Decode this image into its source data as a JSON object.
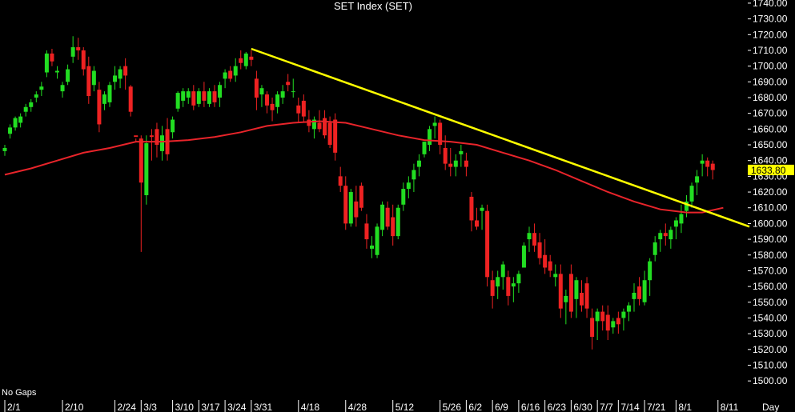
{
  "chart_data": {
    "type": "candlestick",
    "title": "SET Index (SET)",
    "note": "No Gaps",
    "period_label": "Day",
    "last_value": "1633.80",
    "ylim": [
      1495,
      1742
    ],
    "y_ticks": [
      1500,
      1510,
      1520,
      1530,
      1540,
      1550,
      1560,
      1570,
      1580,
      1590,
      1600,
      1610,
      1620,
      1630,
      1640,
      1650,
      1660,
      1670,
      1680,
      1690,
      1700,
      1710,
      1720,
      1730,
      1740
    ],
    "y_tick_labels": [
      "1500.00",
      "1510.00",
      "1520.00",
      "1530.00",
      "1540.00",
      "1550.00",
      "1560.00",
      "1570.00",
      "1580.00",
      "1590.00",
      "1600.00",
      "1610.00",
      "1620.00",
      "1630.00",
      "1640.00",
      "1650.00",
      "1660.00",
      "1670.00",
      "1680.00",
      "1690.00",
      "1700.00",
      "1710.00",
      "1720.00",
      "1730.00",
      "1740.00"
    ],
    "x_tick_labels": [
      {
        "label": "2/1",
        "index": 0
      },
      {
        "label": "2/10",
        "index": 11
      },
      {
        "label": "2/24",
        "index": 21
      },
      {
        "label": "3/3",
        "index": 26
      },
      {
        "label": "3/10",
        "index": 32
      },
      {
        "label": "3/17",
        "index": 37
      },
      {
        "label": "3/24",
        "index": 42
      },
      {
        "label": "3/31",
        "index": 47
      },
      {
        "label": "4/18",
        "index": 56
      },
      {
        "label": "4/28",
        "index": 65
      },
      {
        "label": "5/12",
        "index": 74
      },
      {
        "label": "5/26",
        "index": 83
      },
      {
        "label": "6/2",
        "index": 88
      },
      {
        "label": "6/9",
        "index": 93
      },
      {
        "label": "6/16",
        "index": 98
      },
      {
        "label": "6/23",
        "index": 103
      },
      {
        "label": "6/30",
        "index": 108
      },
      {
        "label": "7/7",
        "index": 113
      },
      {
        "label": "7/14",
        "index": 117
      },
      {
        "label": "7/21",
        "index": 122
      },
      {
        "label": "8/1",
        "index": 128
      },
      {
        "label": "8/11",
        "index": 136
      }
    ],
    "candles": [
      [
        1646,
        1650,
        1643,
        1648
      ],
      [
        1657,
        1663,
        1654,
        1661
      ],
      [
        1661,
        1668,
        1659,
        1667
      ],
      [
        1664,
        1670,
        1661,
        1668
      ],
      [
        1671,
        1676,
        1668,
        1674
      ],
      [
        1674,
        1679,
        1671,
        1677
      ],
      [
        1680,
        1684,
        1677,
        1682
      ],
      [
        1685,
        1690,
        1681,
        1687
      ],
      [
        1696,
        1710,
        1693,
        1708
      ],
      [
        1708,
        1711,
        1700,
        1703
      ],
      [
        1696,
        1700,
        1692,
        1697
      ],
      [
        1684,
        1690,
        1680,
        1688
      ],
      [
        1690,
        1701,
        1688,
        1698
      ],
      [
        1706,
        1719,
        1702,
        1712
      ],
      [
        1712,
        1718,
        1704,
        1710
      ],
      [
        1710,
        1712,
        1694,
        1698
      ],
      [
        1700,
        1706,
        1676,
        1681
      ],
      [
        1688,
        1700,
        1684,
        1697
      ],
      [
        1685,
        1690,
        1658,
        1663
      ],
      [
        1676,
        1684,
        1672,
        1682
      ],
      [
        1677,
        1690,
        1674,
        1688
      ],
      [
        1690,
        1700,
        1685,
        1694
      ],
      [
        1692,
        1700,
        1686,
        1698
      ],
      [
        1700,
        1705,
        1685,
        1694
      ],
      [
        1687,
        1688,
        1668,
        1671
      ],
      [
        1656,
        1654,
        1652,
        1655
      ],
      [
        1654,
        1656,
        1582,
        1626
      ],
      [
        1618,
        1656,
        1612,
        1651
      ],
      [
        1656,
        1660,
        1640,
        1655
      ],
      [
        1660,
        1664,
        1642,
        1650
      ],
      [
        1646,
        1662,
        1640,
        1656
      ],
      [
        1660,
        1667,
        1640,
        1644
      ],
      [
        1658,
        1668,
        1654,
        1666
      ],
      [
        1673,
        1684,
        1671,
        1683
      ],
      [
        1678,
        1686,
        1674,
        1684
      ],
      [
        1680,
        1686,
        1676,
        1684
      ],
      [
        1684,
        1688,
        1672,
        1675
      ],
      [
        1676,
        1686,
        1674,
        1684
      ],
      [
        1684,
        1690,
        1674,
        1678
      ],
      [
        1676,
        1686,
        1674,
        1684
      ],
      [
        1684,
        1688,
        1674,
        1677
      ],
      [
        1680,
        1690,
        1674,
        1688
      ],
      [
        1692,
        1698,
        1686,
        1696
      ],
      [
        1697,
        1700,
        1690,
        1692
      ],
      [
        1694,
        1705,
        1690,
        1700
      ],
      [
        1705,
        1710,
        1698,
        1702
      ],
      [
        1700,
        1709,
        1698,
        1708
      ],
      [
        1706,
        1710,
        1700,
        1704
      ],
      [
        1692,
        1697,
        1672,
        1680
      ],
      [
        1682,
        1688,
        1674,
        1686
      ],
      [
        1682,
        1684,
        1670,
        1675
      ],
      [
        1676,
        1680,
        1665,
        1672
      ],
      [
        1674,
        1684,
        1670,
        1682
      ],
      [
        1680,
        1688,
        1676,
        1684
      ],
      [
        1690,
        1695,
        1684,
        1688
      ],
      [
        1684,
        1692,
        1680,
        1684
      ],
      [
        1675,
        1680,
        1664,
        1670
      ],
      [
        1678,
        1682,
        1664,
        1668
      ],
      [
        1666,
        1672,
        1658,
        1662
      ],
      [
        1660,
        1668,
        1654,
        1666
      ],
      [
        1664,
        1672,
        1658,
        1660
      ],
      [
        1667,
        1672,
        1654,
        1656
      ],
      [
        1664,
        1668,
        1648,
        1650
      ],
      [
        1666,
        1670,
        1640,
        1645
      ],
      [
        1630,
        1636,
        1620,
        1624
      ],
      [
        1624,
        1630,
        1596,
        1600
      ],
      [
        1600,
        1622,
        1598,
        1620
      ],
      [
        1614,
        1624,
        1598,
        1604
      ],
      [
        1624,
        1626,
        1608,
        1610
      ],
      [
        1600,
        1606,
        1584,
        1590
      ],
      [
        1584,
        1592,
        1578,
        1586
      ],
      [
        1580,
        1600,
        1578,
        1598
      ],
      [
        1596,
        1614,
        1592,
        1612
      ],
      [
        1610,
        1614,
        1596,
        1598
      ],
      [
        1604,
        1612,
        1586,
        1592
      ],
      [
        1592,
        1612,
        1590,
        1610
      ],
      [
        1612,
        1626,
        1608,
        1622
      ],
      [
        1622,
        1630,
        1616,
        1626
      ],
      [
        1628,
        1638,
        1620,
        1634
      ],
      [
        1636,
        1644,
        1630,
        1640
      ],
      [
        1644,
        1652,
        1642,
        1652
      ],
      [
        1650,
        1662,
        1646,
        1660
      ],
      [
        1662,
        1668,
        1654,
        1664
      ],
      [
        1664,
        1666,
        1644,
        1650
      ],
      [
        1648,
        1656,
        1634,
        1638
      ],
      [
        1638,
        1648,
        1630,
        1636
      ],
      [
        1636,
        1644,
        1630,
        1640
      ],
      [
        1644,
        1650,
        1636,
        1646
      ],
      [
        1640,
        1645,
        1630,
        1636
      ],
      [
        1617,
        1620,
        1595,
        1602
      ],
      [
        1602,
        1610,
        1596,
        1598
      ],
      [
        1608,
        1612,
        1596,
        1610
      ],
      [
        1608,
        1612,
        1560,
        1566
      ],
      [
        1564,
        1570,
        1546,
        1554
      ],
      [
        1560,
        1570,
        1552,
        1566
      ],
      [
        1566,
        1576,
        1558,
        1574
      ],
      [
        1566,
        1570,
        1548,
        1554
      ],
      [
        1560,
        1566,
        1550,
        1562
      ],
      [
        1562,
        1570,
        1556,
        1568
      ],
      [
        1572,
        1588,
        1572,
        1586
      ],
      [
        1590,
        1598,
        1582,
        1594
      ],
      [
        1594,
        1600,
        1582,
        1586
      ],
      [
        1588,
        1594,
        1574,
        1578
      ],
      [
        1580,
        1590,
        1568,
        1572
      ],
      [
        1576,
        1580,
        1566,
        1570
      ],
      [
        1566,
        1574,
        1560,
        1568
      ],
      [
        1568,
        1574,
        1540,
        1546
      ],
      [
        1550,
        1558,
        1536,
        1554
      ],
      [
        1568,
        1574,
        1540,
        1544
      ],
      [
        1552,
        1566,
        1540,
        1564
      ],
      [
        1556,
        1564,
        1544,
        1548
      ],
      [
        1562,
        1566,
        1540,
        1546
      ],
      [
        1540,
        1546,
        1520,
        1528
      ],
      [
        1538,
        1546,
        1526,
        1544
      ],
      [
        1544,
        1548,
        1532,
        1538
      ],
      [
        1542,
        1548,
        1526,
        1532
      ],
      [
        1534,
        1540,
        1530,
        1538
      ],
      [
        1540,
        1544,
        1530,
        1536
      ],
      [
        1540,
        1546,
        1532,
        1544
      ],
      [
        1544,
        1550,
        1538,
        1548
      ],
      [
        1552,
        1562,
        1544,
        1556
      ],
      [
        1560,
        1566,
        1548,
        1552
      ],
      [
        1550,
        1570,
        1548,
        1564
      ],
      [
        1564,
        1578,
        1554,
        1576
      ],
      [
        1580,
        1592,
        1576,
        1588
      ],
      [
        1590,
        1596,
        1582,
        1594
      ],
      [
        1594,
        1600,
        1586,
        1592
      ],
      [
        1590,
        1598,
        1584,
        1596
      ],
      [
        1598,
        1604,
        1590,
        1602
      ],
      [
        1600,
        1612,
        1594,
        1606
      ],
      [
        1608,
        1618,
        1604,
        1614
      ],
      [
        1614,
        1626,
        1610,
        1624
      ],
      [
        1626,
        1634,
        1618,
        1630
      ],
      [
        1638,
        1644,
        1630,
        1640
      ],
      [
        1640,
        1642,
        1630,
        1636
      ],
      [
        1638,
        1640,
        1628,
        1634
      ]
    ],
    "moving_average": {
      "color": "#e8242a",
      "points": [
        [
          0,
          1631
        ],
        [
          5,
          1635
        ],
        [
          10,
          1640
        ],
        [
          15,
          1645
        ],
        [
          20,
          1648
        ],
        [
          25,
          1652
        ],
        [
          30,
          1652
        ],
        [
          35,
          1653
        ],
        [
          40,
          1655
        ],
        [
          45,
          1658
        ],
        [
          50,
          1662
        ],
        [
          55,
          1664
        ],
        [
          60,
          1665
        ],
        [
          65,
          1664
        ],
        [
          70,
          1660
        ],
        [
          75,
          1656
        ],
        [
          80,
          1653
        ],
        [
          85,
          1652
        ],
        [
          90,
          1650
        ],
        [
          95,
          1645
        ],
        [
          100,
          1640
        ],
        [
          105,
          1634
        ],
        [
          110,
          1627
        ],
        [
          115,
          1620
        ],
        [
          120,
          1614
        ],
        [
          125,
          1609
        ],
        [
          130,
          1607
        ],
        [
          133,
          1607
        ],
        [
          137,
          1610
        ]
      ]
    },
    "trendline": {
      "color": "#ffff00",
      "from": [
        47,
        1711
      ],
      "to": [
        142,
        1598
      ]
    },
    "candle_up_color": "#22dd22",
    "candle_down_color": "#ee2222"
  }
}
